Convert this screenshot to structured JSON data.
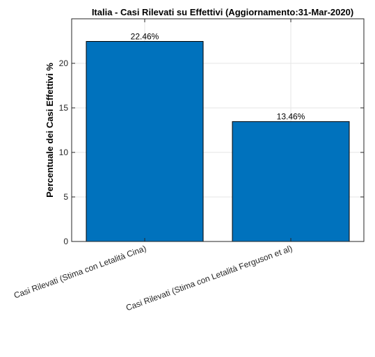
{
  "chart_data": {
    "type": "bar",
    "title": "Italia - Casi Rilevati su Effettivi (Aggiornamento:31-Mar-2020)",
    "xlabel": "",
    "ylabel": "Percentuale dei Casi Effettivi %",
    "categories": [
      "Casi Rilevati (Stima con Letalità Cina)",
      "Casi Rilevati (Stima con Letalità Ferguson et al)"
    ],
    "values": [
      22.46,
      13.46
    ],
    "data_labels": [
      "22.46%",
      "13.46%"
    ],
    "ylim": [
      0,
      25
    ],
    "yticks": [
      0,
      5,
      10,
      15,
      20
    ],
    "ytick_labels": [
      "0",
      "5",
      "10",
      "15",
      "20"
    ],
    "grid": true,
    "legend": "none",
    "colors": {
      "bar": "#0072BD",
      "bar_edge": "#000000",
      "axis": "#262626",
      "grid": "#e6e6e6"
    }
  }
}
